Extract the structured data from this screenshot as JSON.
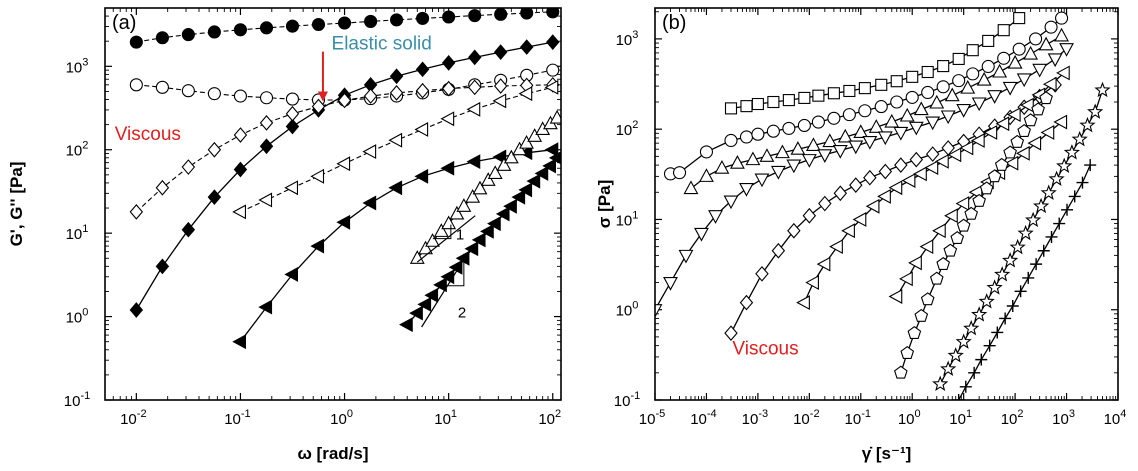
{
  "chart_data": [
    {
      "type": "scatter",
      "panel_label": "(a)",
      "xlabel": "ω [rad/s]",
      "ylabel": "G', G'' [Pa]",
      "xscale": "log",
      "yscale": "log",
      "xlim": [
        0.005,
        120
      ],
      "ylim": [
        0.1,
        5000
      ],
      "xticks": [
        {
          "v": 0.01,
          "b": "10",
          "e": "-2"
        },
        {
          "v": 0.1,
          "b": "10",
          "e": "-1"
        },
        {
          "v": 1,
          "b": "10",
          "e": "0"
        },
        {
          "v": 10,
          "b": "10",
          "e": "1"
        },
        {
          "v": 100,
          "b": "10",
          "e": "2"
        }
      ],
      "yticks": [
        {
          "v": 0.1,
          "b": "10",
          "e": "-1"
        },
        {
          "v": 1,
          "b": "10",
          "e": "0"
        },
        {
          "v": 10,
          "b": "10",
          "e": "1"
        },
        {
          "v": 100,
          "b": "10",
          "e": "2"
        },
        {
          "v": 1000,
          "b": "10",
          "e": "3"
        }
      ],
      "annotations": [
        {
          "text": "Elastic solid",
          "color": "#3a8fa8",
          "x": 0.75,
          "y": 1600
        },
        {
          "text": "Viscous",
          "color": "#e02020",
          "x": 0.0062,
          "y": 130
        }
      ],
      "arrow": {
        "color": "#e02020",
        "x": 0.62,
        "y_from": 1500,
        "y_to": 400
      },
      "slopes": [
        {
          "label": "1",
          "x0": 5,
          "y0": 4.5,
          "x1": 18,
          "y1": 16.2,
          "tri_x": 10.5,
          "tri_y": 8.6
        },
        {
          "label": "2",
          "x0": 5.5,
          "y0": 0.75,
          "x1": 16,
          "y1": 6.3,
          "tri_x": 14,
          "tri_y": 4.8
        }
      ],
      "series": [
        {
          "marker": "circle",
          "filled": true,
          "style": "dashed",
          "x": [
            0.01,
            0.0178,
            0.0316,
            0.0562,
            0.1,
            0.178,
            0.316,
            0.562,
            1,
            1.78,
            3.16,
            5.62,
            10,
            17.8,
            31.6,
            56.2,
            100
          ],
          "y": [
            1950,
            2200,
            2400,
            2580,
            2740,
            2890,
            3030,
            3170,
            3300,
            3450,
            3600,
            3750,
            3900,
            4050,
            4200,
            4350,
            4500
          ]
        },
        {
          "marker": "circle",
          "filled": false,
          "style": "dashed",
          "x": [
            0.01,
            0.0178,
            0.0316,
            0.0562,
            0.1,
            0.178,
            0.316,
            0.562,
            1,
            1.78,
            3.16,
            5.62,
            10,
            17.8,
            31.6,
            56.2,
            100
          ],
          "y": [
            600,
            560,
            510,
            470,
            440,
            420,
            405,
            395,
            395,
            410,
            440,
            480,
            530,
            600,
            680,
            780,
            900
          ]
        },
        {
          "marker": "diamond",
          "filled": true,
          "style": "solid",
          "x": [
            0.01,
            0.0178,
            0.0316,
            0.0562,
            0.1,
            0.178,
            0.316,
            0.562,
            1,
            1.78,
            3.16,
            5.62,
            10,
            17.8,
            31.6,
            56.2,
            100
          ],
          "y": [
            1.2,
            4,
            11,
            27,
            58,
            110,
            190,
            300,
            450,
            600,
            760,
            920,
            1100,
            1280,
            1480,
            1700,
            1950
          ]
        },
        {
          "marker": "diamond",
          "filled": false,
          "style": "dashed",
          "x": [
            0.01,
            0.0178,
            0.0316,
            0.0562,
            0.1,
            0.178,
            0.316,
            0.562,
            1,
            1.78,
            3.16,
            5.62,
            10,
            17.8,
            31.6,
            56.2,
            100
          ],
          "y": [
            18,
            35,
            62,
            100,
            150,
            210,
            270,
            330,
            390,
            440,
            480,
            510,
            540,
            560,
            580,
            590,
            600
          ]
        },
        {
          "marker": "triangle-left",
          "filled": false,
          "style": "dashed",
          "x": [
            0.1,
            0.178,
            0.316,
            0.562,
            1,
            1.78,
            3.16,
            5.62,
            10,
            17.8,
            31.6,
            56.2,
            100
          ],
          "y": [
            18,
            25,
            35,
            48,
            68,
            95,
            130,
            175,
            235,
            305,
            385,
            470,
            560
          ]
        },
        {
          "marker": "triangle-left",
          "filled": true,
          "style": "solid",
          "x": [
            0.1,
            0.178,
            0.316,
            0.562,
            1,
            1.78,
            3.16,
            5.62,
            10,
            17.8,
            31.6,
            56.2,
            100
          ],
          "y": [
            0.5,
            1.3,
            3.2,
            7,
            13.5,
            23,
            35,
            48,
            60,
            72,
            82,
            92,
            100
          ]
        },
        {
          "marker": "triangle-up",
          "filled": false,
          "style": "solid",
          "x": [
            5,
            6,
            7,
            8.5,
            10,
            12,
            14,
            17,
            20,
            24,
            28,
            34,
            40,
            48,
            56,
            67,
            80,
            95,
            110
          ],
          "y": [
            5,
            6.5,
            8,
            10.5,
            13,
            17,
            21,
            27,
            34,
            43,
            52,
            65,
            80,
            100,
            120,
            145,
            175,
            205,
            240
          ]
        },
        {
          "marker": "triangle-left",
          "filled": true,
          "style": "solid",
          "x": [
            4,
            5,
            6,
            7,
            8.5,
            10,
            12,
            14,
            17,
            20,
            24,
            28,
            34,
            40,
            48,
            56,
            67,
            80,
            95,
            110
          ],
          "y": [
            0.8,
            1.1,
            1.4,
            1.8,
            2.4,
            3,
            3.9,
            5,
            6.5,
            8.3,
            10.5,
            13,
            17,
            21,
            27,
            33,
            42,
            52,
            64,
            80
          ]
        }
      ]
    },
    {
      "type": "scatter",
      "panel_label": "(b)",
      "xlabel": "γ̇ [s⁻¹]",
      "ylabel": "σ [Pa]",
      "xscale": "log",
      "yscale": "log",
      "xlim": [
        1e-05,
        10000
      ],
      "ylim": [
        0.1,
        2200
      ],
      "xticks": [
        {
          "v": 1e-05,
          "b": "10",
          "e": "-5"
        },
        {
          "v": 0.0001,
          "b": "10",
          "e": "-4"
        },
        {
          "v": 0.001,
          "b": "10",
          "e": "-3"
        },
        {
          "v": 0.01,
          "b": "10",
          "e": "-2"
        },
        {
          "v": 0.1,
          "b": "10",
          "e": "-1"
        },
        {
          "v": 1,
          "b": "10",
          "e": "0"
        },
        {
          "v": 10,
          "b": "10",
          "e": "1"
        },
        {
          "v": 100,
          "b": "10",
          "e": "2"
        },
        {
          "v": 1000,
          "b": "10",
          "e": "3"
        },
        {
          "v": 10000,
          "b": "10",
          "e": "4"
        }
      ],
      "yticks": [
        {
          "v": 0.1,
          "b": "10",
          "e": "-1"
        },
        {
          "v": 1,
          "b": "10",
          "e": "0"
        },
        {
          "v": 10,
          "b": "10",
          "e": "1"
        },
        {
          "v": 100,
          "b": "10",
          "e": "2"
        },
        {
          "v": 1000,
          "b": "10",
          "e": "3"
        }
      ],
      "annotations": [
        {
          "text": "Viscous",
          "color": "#e02020",
          "x": 0.00032,
          "y": 0.32
        }
      ],
      "series": [
        {
          "marker": "square",
          "x": [
            0.0003,
            0.0006,
            0.001,
            0.002,
            0.004,
            0.008,
            0.015,
            0.03,
            0.06,
            0.12,
            0.25,
            0.5,
            1,
            2,
            4,
            8,
            15,
            30,
            60,
            120
          ],
          "y": [
            170,
            180,
            190,
            200,
            210,
            222,
            235,
            250,
            265,
            285,
            310,
            340,
            380,
            430,
            500,
            600,
            750,
            950,
            1250,
            1700
          ]
        },
        {
          "marker": "circle",
          "x": [
            2e-05,
            3e-05,
            0.0001,
            0.0003,
            0.0006,
            0.001,
            0.002,
            0.004,
            0.008,
            0.015,
            0.03,
            0.06,
            0.12,
            0.25,
            0.5,
            1,
            2,
            4,
            8,
            15,
            30,
            60,
            120,
            250,
            500,
            800
          ],
          "y": [
            32,
            33,
            56,
            75,
            82,
            88,
            95,
            102,
            110,
            120,
            132,
            145,
            160,
            178,
            200,
            225,
            255,
            295,
            345,
            410,
            495,
            610,
            770,
            1000,
            1350,
            1700
          ]
        },
        {
          "marker": "triangle-up",
          "x": [
            5e-05,
            0.0001,
            0.0002,
            0.0004,
            0.0008,
            0.0015,
            0.003,
            0.006,
            0.012,
            0.025,
            0.05,
            0.1,
            0.2,
            0.4,
            0.8,
            1.5,
            3,
            6,
            12,
            25,
            50,
            100,
            200,
            400,
            800
          ],
          "y": [
            22,
            30,
            37,
            42,
            46,
            50,
            55,
            60,
            66,
            73,
            82,
            92,
            105,
            120,
            140,
            165,
            195,
            235,
            285,
            350,
            430,
            540,
            680,
            860,
            1080
          ]
        },
        {
          "marker": "triangle-down",
          "x": [
            1e-05,
            2e-05,
            4e-05,
            8e-05,
            0.00015,
            0.0003,
            0.0006,
            0.0012,
            0.0025,
            0.005,
            0.01,
            0.02,
            0.04,
            0.08,
            0.15,
            0.3,
            0.6,
            1.2,
            2.5,
            5,
            10,
            20,
            40,
            80,
            150,
            300,
            600,
            1000
          ],
          "y": [
            1,
            2,
            4,
            7,
            11,
            16,
            22,
            28,
            34,
            40,
            46,
            52,
            58,
            65,
            73,
            82,
            92,
            105,
            120,
            140,
            165,
            195,
            235,
            290,
            360,
            460,
            600,
            780
          ]
        },
        {
          "marker": "diamond",
          "x": [
            0.0003,
            0.0006,
            0.0012,
            0.0025,
            0.005,
            0.01,
            0.02,
            0.04,
            0.08,
            0.15,
            0.3,
            0.6,
            1.2,
            2.5,
            5,
            10,
            20,
            40,
            80,
            150,
            300,
            600
          ],
          "y": [
            0.55,
            1.2,
            2.5,
            4.5,
            7.5,
            11,
            15,
            19.5,
            24,
            29,
            34,
            40,
            46,
            53,
            62,
            73,
            88,
            108,
            135,
            175,
            230,
            310
          ]
        },
        {
          "marker": "triangle-left",
          "x": [
            0.008,
            0.012,
            0.02,
            0.035,
            0.06,
            0.1,
            0.18,
            0.3,
            0.5,
            0.9,
            1.5,
            2.5,
            4,
            7,
            12,
            20,
            35,
            60,
            100,
            180,
            300,
            500,
            900
          ],
          "y": [
            1.2,
            2,
            3.2,
            5,
            7.5,
            10,
            14,
            18,
            22.5,
            27,
            32,
            37.5,
            44,
            52,
            62,
            75,
            92,
            115,
            145,
            185,
            240,
            315,
            420
          ]
        },
        {
          "marker": "triangle-left",
          "x": [
            0.5,
            0.8,
            1.2,
            2,
            3.5,
            6,
            10,
            18,
            30,
            50,
            90,
            150,
            250,
            450,
            800
          ],
          "y": [
            1.4,
            2.2,
            3.3,
            5,
            7.5,
            11,
            15,
            20,
            26,
            33,
            42,
            54,
            70,
            92,
            120
          ]
        },
        {
          "marker": "pentagon",
          "x": [
            0.6,
            0.8,
            1.1,
            1.5,
            2,
            3,
            4,
            5.5,
            7.5,
            10,
            14,
            20,
            28,
            40,
            55,
            80,
            110,
            150,
            200,
            280,
            400
          ],
          "y": [
            0.2,
            0.33,
            0.55,
            0.85,
            1.3,
            2.2,
            3.2,
            4.5,
            6.2,
            8.5,
            11.5,
            16,
            22,
            30,
            40,
            55,
            72,
            95,
            125,
            165,
            220
          ]
        },
        {
          "marker": "star",
          "x": [
            3.5,
            5,
            7,
            10,
            14,
            20,
            28,
            40,
            56,
            80,
            112,
            160,
            224,
            320,
            450,
            640,
            900,
            1270,
            1800,
            2550,
            3600,
            5000
          ],
          "y": [
            0.15,
            0.22,
            0.31,
            0.44,
            0.62,
            0.88,
            1.23,
            1.75,
            2.45,
            3.5,
            4.9,
            7,
            9.8,
            14,
            19.6,
            28,
            39,
            55,
            77,
            110,
            155,
            270
          ]
        },
        {
          "marker": "plus",
          "x": [
            8,
            11,
            16,
            22,
            32,
            45,
            64,
            90,
            128,
            180,
            256,
            360,
            510,
            720,
            1020,
            1440,
            2040,
            2880
          ],
          "y": [
            0.1,
            0.14,
            0.2,
            0.28,
            0.4,
            0.56,
            0.8,
            1.1,
            1.6,
            2.25,
            3.2,
            4.5,
            6.4,
            9,
            12.8,
            18,
            25.6,
            40
          ]
        }
      ]
    }
  ]
}
